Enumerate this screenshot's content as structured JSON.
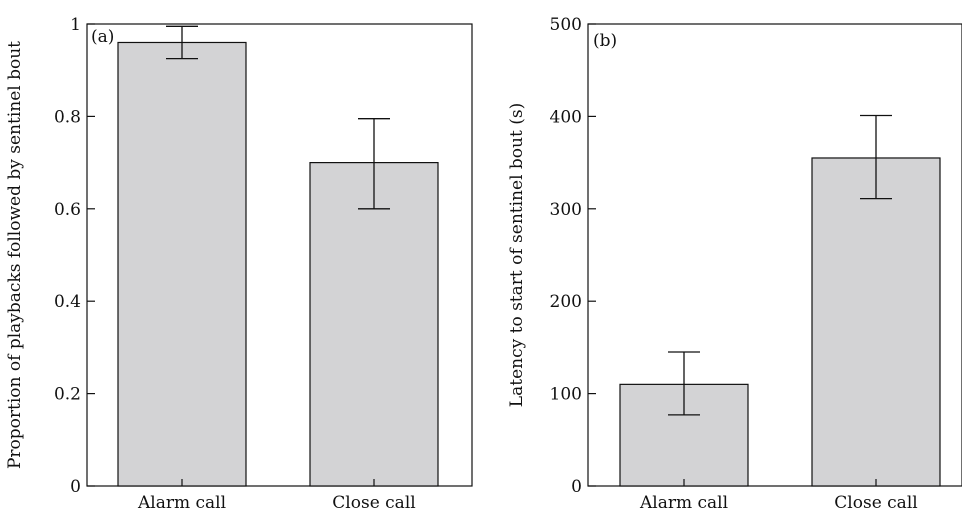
{
  "chart_data": [
    {
      "type": "bar",
      "panel_label": "(a)",
      "categories": [
        "Alarm call",
        "Close call"
      ],
      "values": [
        0.96,
        0.7
      ],
      "error_low": [
        0.925,
        0.6
      ],
      "error_high": [
        0.995,
        0.795
      ],
      "ylabel": "Proportion of playbacks followed by sentinel bout",
      "ylim": [
        0,
        1
      ],
      "yticks": [
        0,
        0.2,
        0.4,
        0.6,
        0.8,
        1
      ],
      "ytick_labels": [
        "0",
        "0.2",
        "0.4",
        "0.6",
        "0.8",
        "1"
      ],
      "bar_color": "#d3d3d5",
      "grid": false
    },
    {
      "type": "bar",
      "panel_label": "(b)",
      "categories": [
        "Alarm call",
        "Close call"
      ],
      "values": [
        110,
        355
      ],
      "error_low": [
        77,
        311
      ],
      "error_high": [
        145,
        401
      ],
      "ylabel": "Latency to start of sentinel bout (s)",
      "ylim": [
        0,
        500
      ],
      "yticks": [
        0,
        100,
        200,
        300,
        400,
        500
      ],
      "ytick_labels": [
        "0",
        "100",
        "200",
        "300",
        "400",
        "500"
      ],
      "bar_color": "#d3d3d5",
      "grid": false
    }
  ]
}
